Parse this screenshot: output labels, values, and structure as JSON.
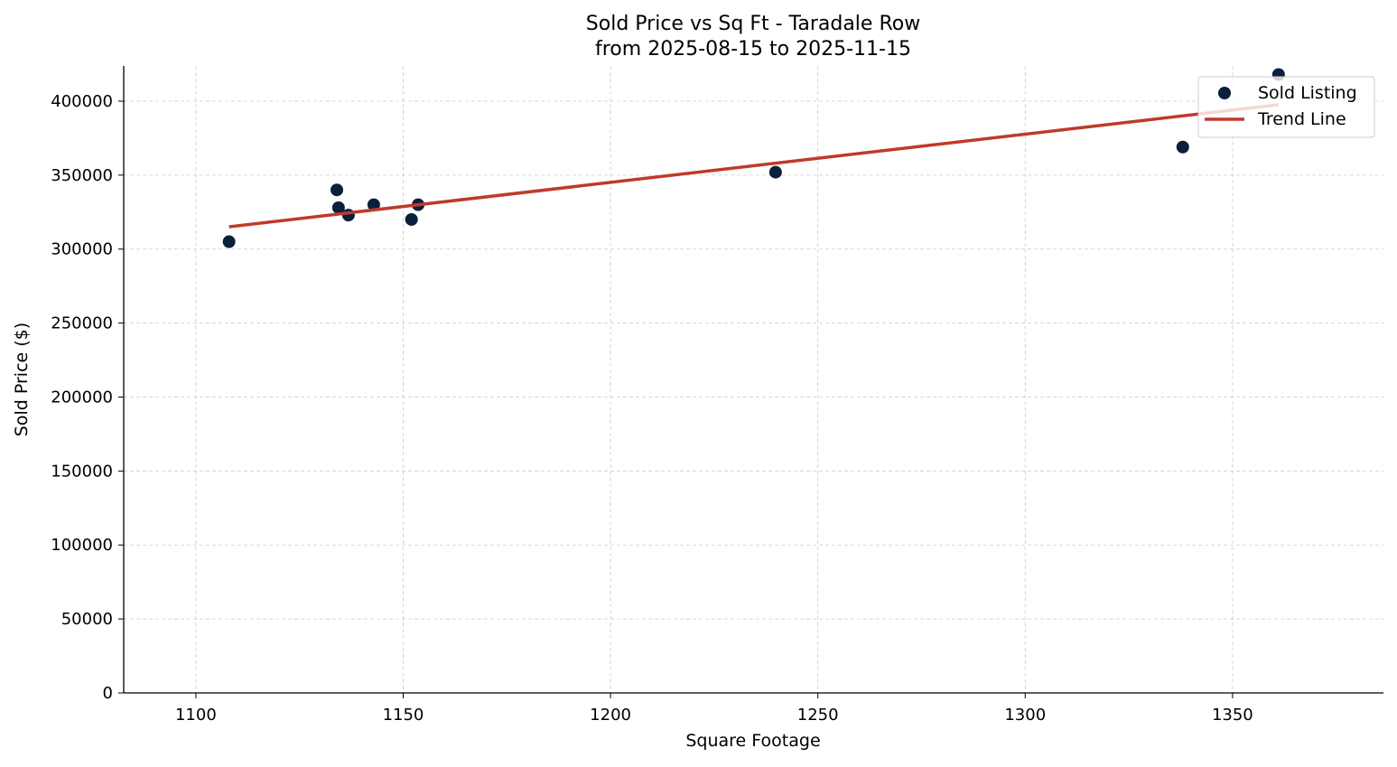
{
  "chart_data": {
    "type": "scatter",
    "title": "Sold Price vs Sq Ft - Taradale Row",
    "subtitle": "from 2025-08-15 to 2025-11-15",
    "xlabel": "Square Footage",
    "ylabel": "Sold Price ($)",
    "xlim": [
      1082.6,
      1386.4
    ],
    "ylim": [
      0,
      423800
    ],
    "xticks": [
      1100,
      1150,
      1200,
      1250,
      1300,
      1350
    ],
    "yticks": [
      0,
      50000,
      100000,
      150000,
      200000,
      250000,
      300000,
      350000,
      400000
    ],
    "grid": true,
    "legend_position": "top-right",
    "series": [
      {
        "name": "Sold Listing",
        "type": "scatter",
        "color": "#0b1f3a",
        "points": [
          {
            "x": 1108,
            "y": 305000
          },
          {
            "x": 1134,
            "y": 340000
          },
          {
            "x": 1134.4,
            "y": 328000
          },
          {
            "x": 1136.8,
            "y": 323000
          },
          {
            "x": 1142.9,
            "y": 330000
          },
          {
            "x": 1152,
            "y": 320000
          },
          {
            "x": 1153.6,
            "y": 330000
          },
          {
            "x": 1239.8,
            "y": 352000
          },
          {
            "x": 1338,
            "y": 369000
          },
          {
            "x": 1361.1,
            "y": 418000
          }
        ]
      },
      {
        "name": "Trend Line",
        "type": "line",
        "color": "#c0392b",
        "points": [
          {
            "x": 1108,
            "y": 315100
          },
          {
            "x": 1361.1,
            "y": 397600
          }
        ]
      }
    ]
  }
}
